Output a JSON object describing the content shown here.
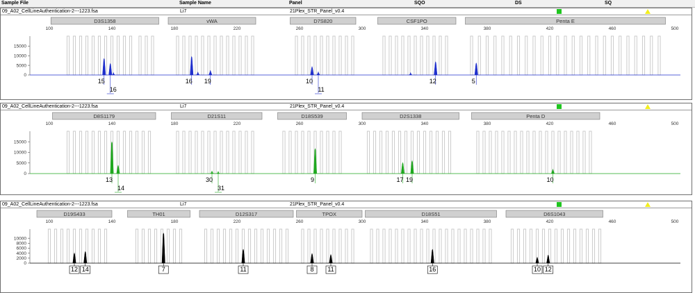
{
  "header": {
    "sample_file": "Sample File",
    "sample_name": "Sample Name",
    "panel": "Panel",
    "sqo": "SQO",
    "ds": "DS",
    "sq": "SQ"
  },
  "colors": {
    "blue": "#1f2fcc",
    "green": "#1fa81f",
    "black": "#000000",
    "bin": "#c6c6c6",
    "marker": "#d0d0d0",
    "status_green": "#1fc51f",
    "status_yellow": "#f2ee1e"
  },
  "x_axis_ticks": [
    "100",
    "140",
    "180",
    "220",
    "260",
    "300",
    "340",
    "380",
    "420",
    "460",
    "500"
  ],
  "panels": [
    {
      "file": "09_A02_CellLineAuthentication-2---1223.fsa",
      "sample": "Li7",
      "panel": "21Plex_STR_Panel_v0.4",
      "color": "blue",
      "y_ticks": [
        "15000",
        "10000",
        "5000",
        "0"
      ],
      "y_max": 18000,
      "markers": [
        {
          "name": "D3S1358",
          "start": 101,
          "end": 170
        },
        {
          "name": "vWA",
          "start": 176,
          "end": 232
        },
        {
          "name": "D7S820",
          "start": 254,
          "end": 296
        },
        {
          "name": "CSF1PO",
          "start": 310,
          "end": 360
        },
        {
          "name": "Penta E",
          "start": 366,
          "end": 494
        }
      ],
      "bins": [
        112,
        116,
        120,
        124,
        128,
        132,
        136,
        140,
        144,
        148,
        152,
        158,
        162,
        166,
        182,
        186,
        190,
        194,
        198,
        202,
        206,
        210,
        214,
        218,
        222,
        226,
        230,
        258,
        262,
        266,
        270,
        274,
        278,
        282,
        286,
        290,
        294,
        314,
        318,
        322,
        326,
        330,
        334,
        338,
        342,
        346,
        350,
        354,
        370,
        375,
        380,
        385,
        390,
        395,
        400,
        405,
        410,
        415,
        420,
        425,
        430,
        435,
        440,
        445,
        450,
        455,
        460,
        465,
        470,
        475,
        480,
        485,
        490
      ],
      "peaks": [
        {
          "x": 135,
          "h": 8600
        },
        {
          "x": 139,
          "h": 6000
        },
        {
          "x": 141,
          "h": 1300
        },
        {
          "x": 191,
          "h": 9600
        },
        {
          "x": 195,
          "h": 1600
        },
        {
          "x": 203,
          "h": 2400
        },
        {
          "x": 268,
          "h": 4400
        },
        {
          "x": 272,
          "h": 1700
        },
        {
          "x": 331,
          "h": 1300
        },
        {
          "x": 347,
          "h": 6900
        },
        {
          "x": 373,
          "h": 6300
        }
      ],
      "calls": [
        {
          "label": "15",
          "x": 135,
          "row": 0
        },
        {
          "label": "16",
          "x": 139,
          "row": 1
        },
        {
          "label": "16",
          "x": 191,
          "row": 0
        },
        {
          "label": "19",
          "x": 203,
          "row": 0
        },
        {
          "label": "10",
          "x": 268,
          "row": 0
        },
        {
          "label": "11",
          "x": 272,
          "row": 1
        },
        {
          "label": "12",
          "x": 347,
          "row": 0
        },
        {
          "label": "5",
          "x": 373,
          "row": 0
        }
      ]
    },
    {
      "file": "09_A02_CellLineAuthentication-2---1223.fsa",
      "sample": "Li7",
      "panel": "21Plex_STR_Panel_v0.4",
      "color": "green",
      "y_ticks": [
        "15000",
        "10000",
        "5000",
        "0"
      ],
      "y_max": 18000,
      "markers": [
        {
          "name": "D8S1179",
          "start": 102,
          "end": 168
        },
        {
          "name": "D21S11",
          "start": 178,
          "end": 236
        },
        {
          "name": "D18S539",
          "start": 246,
          "end": 290
        },
        {
          "name": "D2S1338",
          "start": 300,
          "end": 362
        },
        {
          "name": "Penta D",
          "start": 370,
          "end": 452
        }
      ],
      "bins": [
        112,
        116,
        120,
        124,
        128,
        132,
        136,
        140,
        144,
        148,
        152,
        156,
        160,
        164,
        182,
        186,
        190,
        194,
        198,
        202,
        206,
        210,
        214,
        218,
        222,
        226,
        230,
        250,
        254,
        258,
        262,
        266,
        270,
        274,
        278,
        282,
        286,
        304,
        308,
        312,
        316,
        320,
        324,
        328,
        332,
        336,
        340,
        344,
        348,
        352,
        356,
        374,
        378,
        382,
        386,
        390,
        394,
        398,
        402,
        406,
        410,
        414,
        418,
        422,
        426,
        430,
        434,
        438,
        442,
        446
      ],
      "peaks": [
        {
          "x": 140,
          "h": 15000
        },
        {
          "x": 144,
          "h": 3900
        },
        {
          "x": 204,
          "h": 1300
        },
        {
          "x": 208,
          "h": 1100
        },
        {
          "x": 270,
          "h": 11800
        },
        {
          "x": 326,
          "h": 5200
        },
        {
          "x": 332,
          "h": 6100
        },
        {
          "x": 422,
          "h": 2100
        }
      ],
      "calls": [
        {
          "label": "13",
          "x": 140,
          "row": 0
        },
        {
          "label": "14",
          "x": 144,
          "row": 1
        },
        {
          "label": "30",
          "x": 204,
          "row": 0
        },
        {
          "label": "31",
          "x": 208,
          "row": 1
        },
        {
          "label": "9",
          "x": 270,
          "row": 0
        },
        {
          "label": "17",
          "x": 326,
          "row": 0
        },
        {
          "label": "19",
          "x": 332,
          "row": 0
        },
        {
          "label": "10",
          "x": 422,
          "row": 0
        }
      ]
    },
    {
      "file": "09_A02_CellLineAuthentication-2---1223.fsa",
      "sample": "Li7",
      "panel": "21Plex_STR_Panel_v0.4",
      "color": "black",
      "y_ticks": [
        "10000",
        "8000",
        "6000",
        "4000",
        "2000",
        "0"
      ],
      "y_max": 12000,
      "markers": [
        {
          "name": "D19S433",
          "start": 92,
          "end": 140
        },
        {
          "name": "TH01",
          "start": 150,
          "end": 190
        },
        {
          "name": "D12S317",
          "start": 196,
          "end": 256
        },
        {
          "name": "TPOX",
          "start": 258,
          "end": 300
        },
        {
          "name": "D18S51",
          "start": 302,
          "end": 386
        },
        {
          "name": "D6S1043",
          "start": 392,
          "end": 454
        }
      ],
      "bins": [
        100,
        104,
        108,
        112,
        116,
        120,
        124,
        128,
        132,
        136,
        156,
        160,
        164,
        168,
        172,
        176,
        180,
        184,
        200,
        204,
        208,
        212,
        216,
        220,
        224,
        228,
        232,
        236,
        240,
        244,
        248,
        252,
        262,
        266,
        270,
        274,
        278,
        282,
        286,
        290,
        294,
        306,
        310,
        314,
        318,
        322,
        326,
        330,
        334,
        338,
        342,
        346,
        350,
        354,
        358,
        362,
        366,
        370,
        374,
        378,
        382,
        396,
        400,
        404,
        408,
        412,
        416,
        420,
        424,
        428,
        432,
        436,
        440,
        444,
        448,
        452
      ],
      "peaks": [
        {
          "x": 116,
          "h": 4100
        },
        {
          "x": 123,
          "h": 4700
        },
        {
          "x": 173,
          "h": 12100
        },
        {
          "x": 224,
          "h": 5600
        },
        {
          "x": 268,
          "h": 3900
        },
        {
          "x": 280,
          "h": 3500
        },
        {
          "x": 345,
          "h": 5600
        },
        {
          "x": 412,
          "h": 2400
        },
        {
          "x": 419,
          "h": 3300
        }
      ],
      "calls": [
        {
          "label": "12",
          "x": 116,
          "row": 0,
          "boxed": true
        },
        {
          "label": "14",
          "x": 123,
          "row": 0,
          "boxed": true
        },
        {
          "label": "7",
          "x": 173,
          "row": 0,
          "boxed": true
        },
        {
          "label": "11",
          "x": 224,
          "row": 0,
          "boxed": true
        },
        {
          "label": "8",
          "x": 268,
          "row": 0,
          "boxed": true
        },
        {
          "label": "11",
          "x": 280,
          "row": 0,
          "boxed": true
        },
        {
          "label": "16",
          "x": 345,
          "row": 0,
          "boxed": true
        },
        {
          "label": "10",
          "x": 412,
          "row": 0,
          "boxed": true
        },
        {
          "label": "12",
          "x": 419,
          "row": 0,
          "boxed": true
        }
      ]
    }
  ]
}
